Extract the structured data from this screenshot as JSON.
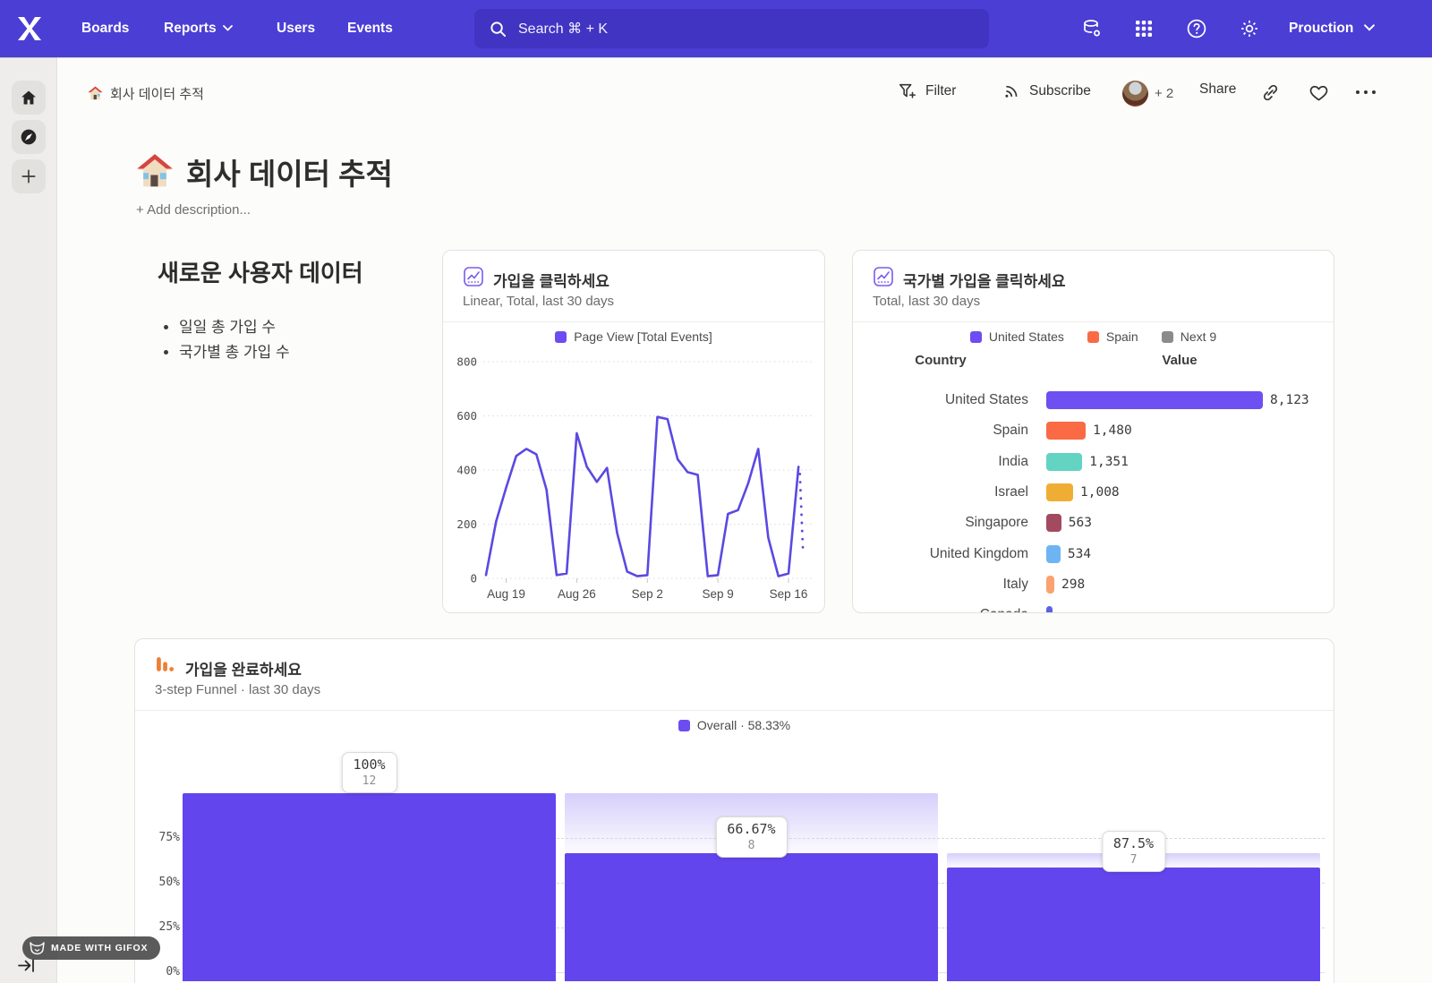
{
  "nav": {
    "items": [
      "Boards",
      "Reports",
      "Users",
      "Events"
    ],
    "search_label": "Search  ⌘ + K",
    "project": "Prouction"
  },
  "toolbar": {
    "breadcrumb": "회사 데이터 추적",
    "filter": "Filter",
    "subscribe": "Subscribe",
    "avatar_extra": "+ 2",
    "share": "Share"
  },
  "page": {
    "title": "회사 데이터 추적",
    "description_placeholder": "+ Add description..."
  },
  "text_card": {
    "heading": "새로운 사용자 데이터",
    "bullets": [
      "일일 총 가입 수",
      "국가별 총 가입 수"
    ]
  },
  "line_card": {
    "title": "가입을 클릭하세요",
    "subtitle": "Linear, Total, last 30 days",
    "legend": "Page View [Total Events]"
  },
  "country_card": {
    "title": "국가별 가입을 클릭하세요",
    "subtitle": "Total, last 30 days",
    "legend": [
      {
        "label": "United States",
        "color": "#6d4cf2"
      },
      {
        "label": "Spain",
        "color": "#f96a45"
      },
      {
        "label": "Next 9",
        "color": "#8b8b8b"
      }
    ],
    "columns": {
      "country": "Country",
      "value": "Value"
    }
  },
  "funnel_card": {
    "title": "가입을 완료하세요",
    "subtitle": "3-step Funnel · last 30 days",
    "legend": "Overall · 58.33%"
  },
  "gifox_badge": "MADE WITH GIFOX",
  "colors": {
    "nav": "#4b3ed4",
    "accent": "#6345ee",
    "line": "#5a49e2"
  },
  "chart_data": [
    {
      "type": "line",
      "title": "가입을 클릭하세요",
      "series": [
        {
          "name": "Page View [Total Events]",
          "values": [
            12,
            210,
            335,
            452,
            478,
            458,
            328,
            12,
            18,
            536,
            412,
            356,
            408,
            168,
            25,
            8,
            12,
            596,
            588,
            440,
            392,
            382,
            8,
            12,
            238,
            252,
            350,
            478,
            150,
            8,
            18,
            412
          ]
        }
      ],
      "x_tick_indices": [
        2,
        9,
        16,
        23,
        30
      ],
      "x_tick_labels": [
        "Aug 19",
        "Aug 26",
        "Sep 2",
        "Sep 9",
        "Sep 16"
      ],
      "ylim": [
        0,
        800
      ],
      "y_ticks": [
        0,
        200,
        400,
        600,
        800
      ],
      "line_color": "#5a49e2",
      "incomplete_tail_value": 100,
      "legend_position": "top"
    },
    {
      "type": "bar",
      "title": "국가별 가입을 클릭하세요",
      "orientation": "horizontal",
      "categories": [
        "United States",
        "Spain",
        "India",
        "Israel",
        "Singapore",
        "United Kingdom",
        "Italy",
        "Canada"
      ],
      "values": [
        8123,
        1480,
        1351,
        1008,
        563,
        534,
        298,
        null
      ],
      "value_labels": [
        "8,123",
        "1,480",
        "1,351",
        "1,008",
        "563",
        "534",
        "298",
        ""
      ],
      "colors": [
        "#6d4ff2",
        "#f96a45",
        "#63d3c2",
        "#efae33",
        "#a34a60",
        "#6fb4f2",
        "#f9a470",
        "#5b63e0"
      ],
      "xlabel": "Value",
      "ylabel": "Country"
    },
    {
      "type": "funnel",
      "title": "가입을 완료하세요",
      "overall_conversion": "58.33%",
      "steps": [
        {
          "pct": "100%",
          "count": 12,
          "overall": 1.0,
          "prev": null
        },
        {
          "pct": "66.67%",
          "count": 8,
          "overall": 0.6667,
          "prev": 1.0
        },
        {
          "pct": "87.5%",
          "count": 7,
          "overall": 0.5833,
          "prev": 0.6667
        }
      ],
      "y_ticks": [
        "75%",
        "50%",
        "25%",
        "0%"
      ],
      "ylim": [
        0,
        1
      ]
    }
  ]
}
